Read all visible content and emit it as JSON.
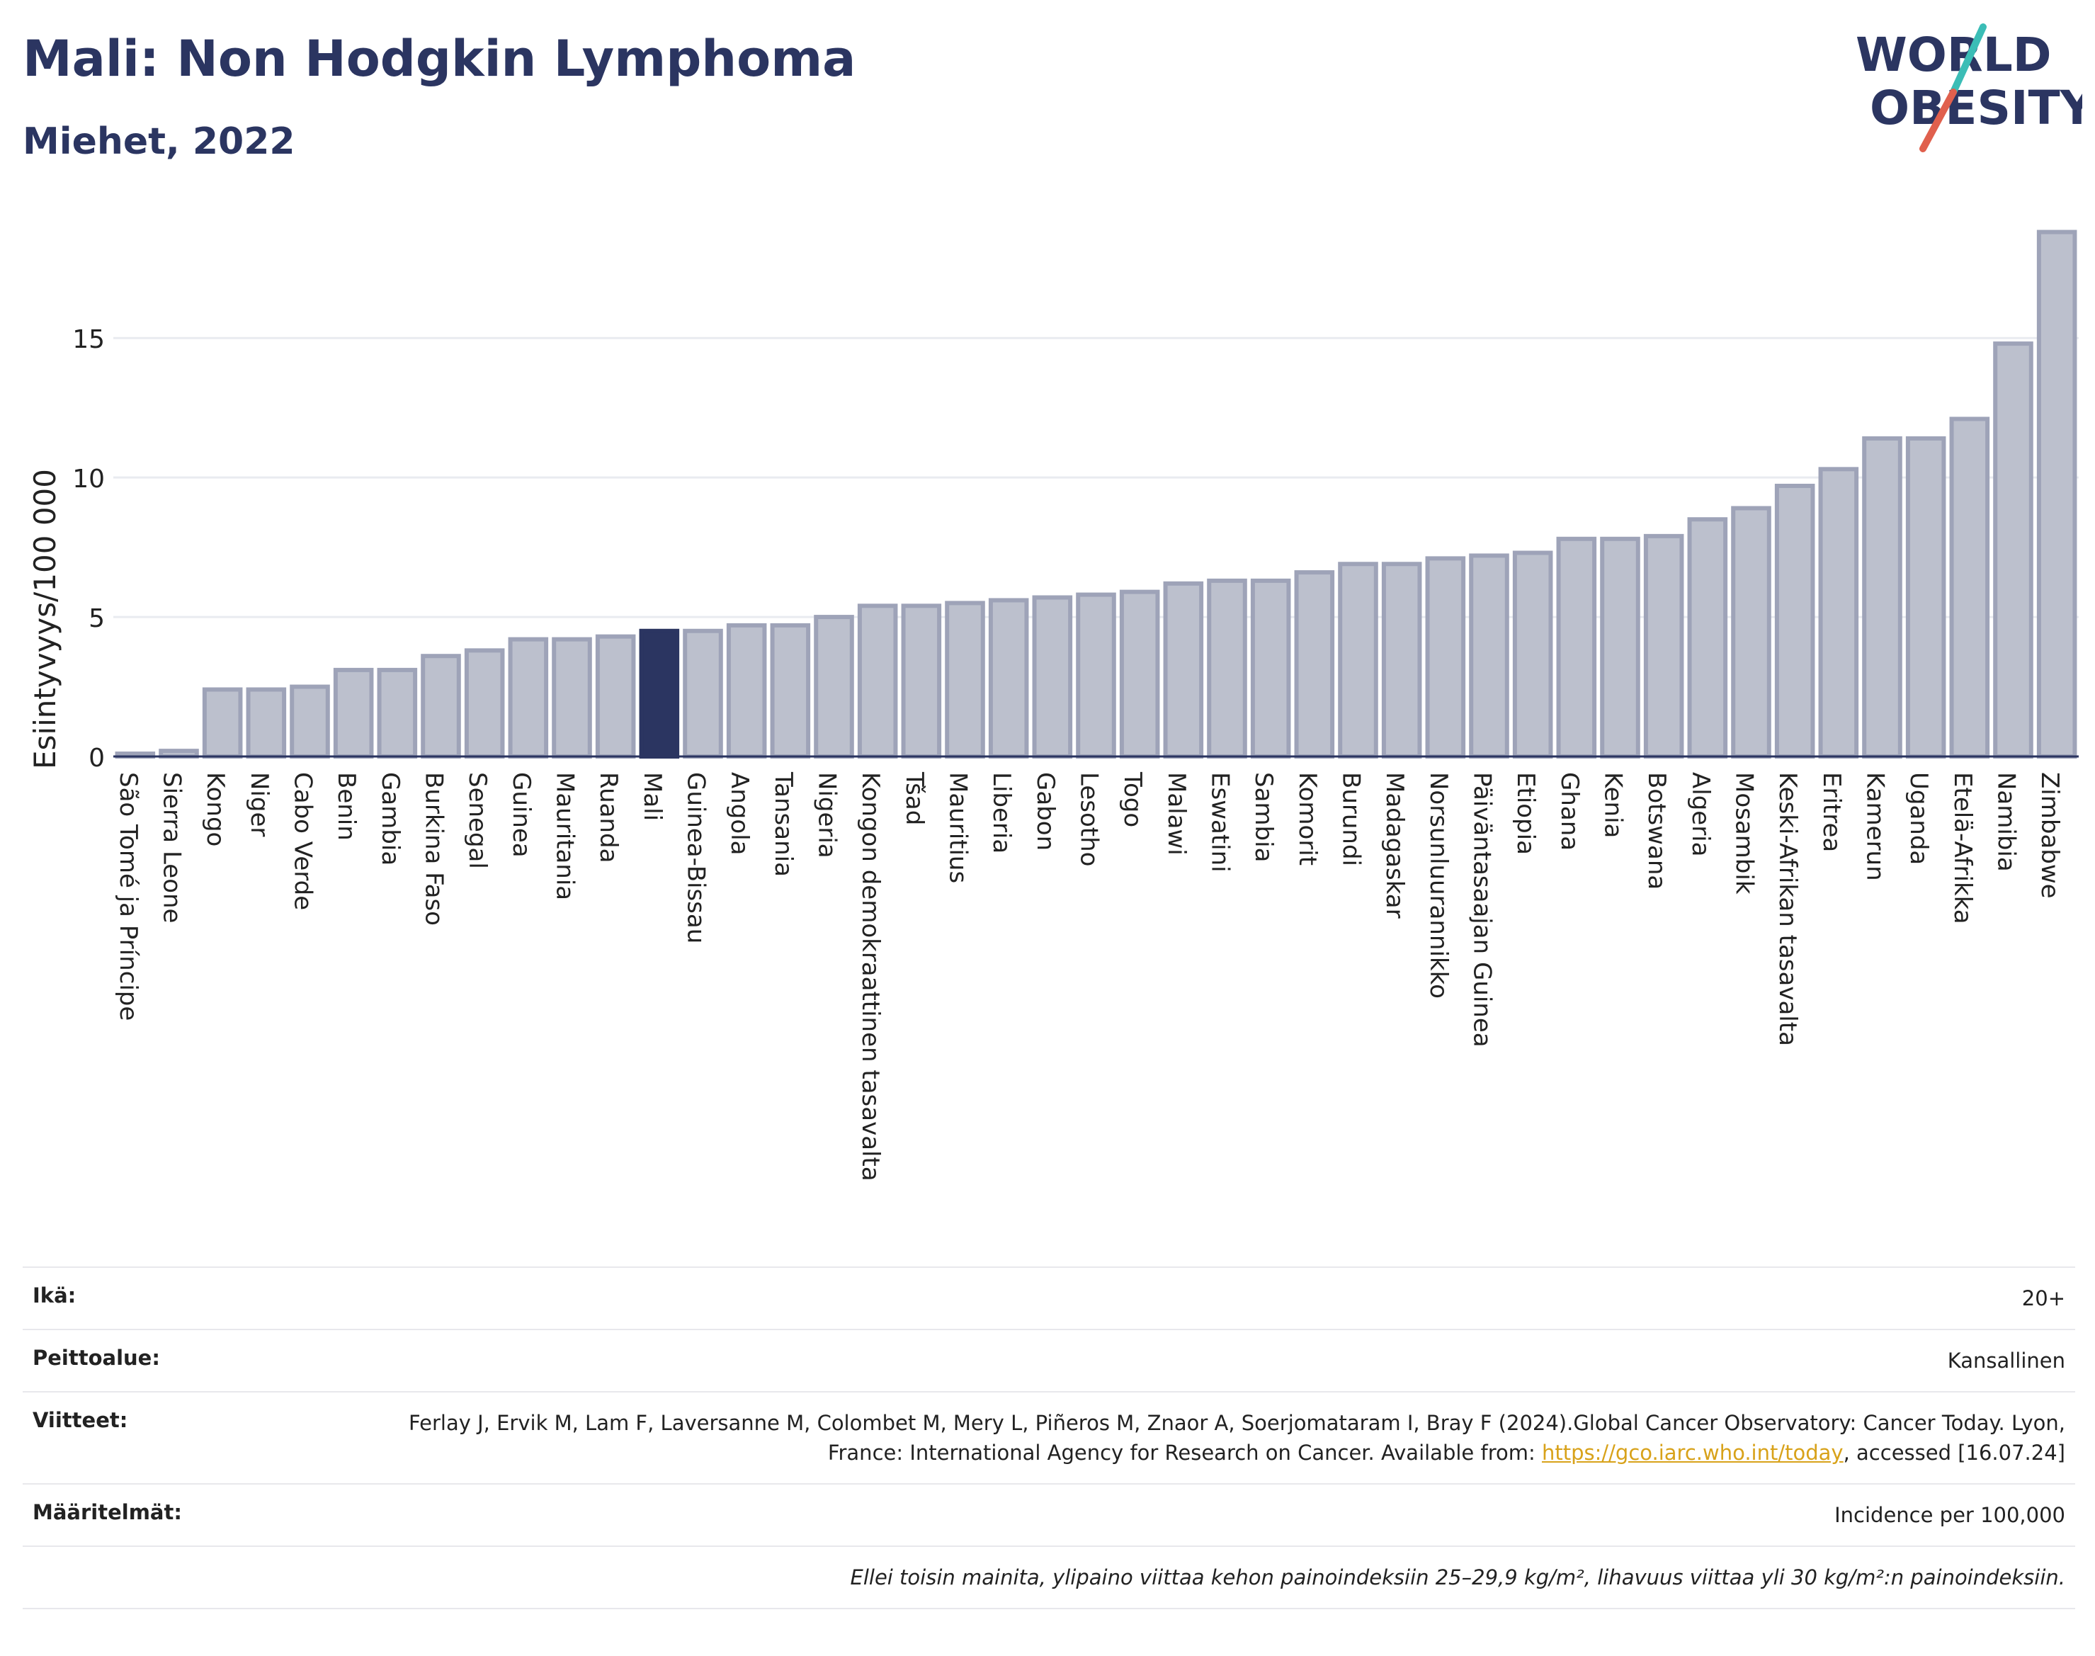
{
  "title": "Mali: Non Hodgkin Lymphoma",
  "subtitle": "Miehet, 2022",
  "logo": {
    "line1": "WORLD",
    "line2": "OBESITY",
    "accent_teal": "#3bbdb6",
    "accent_red": "#e0604d",
    "color": "#2b3561"
  },
  "colors": {
    "highlight": "#2b3561",
    "bar_fill": "#bcc0cd",
    "bar_stroke": "#9ea3b8",
    "grid": "#e9ebf0"
  },
  "chart_data": {
    "type": "bar",
    "title": "Mali: Non Hodgkin Lymphoma",
    "subtitle": "Miehet, 2022",
    "ylabel": "Esiintyvyys/100 000",
    "xlabel": "",
    "ylim": [
      0,
      19.5
    ],
    "yticks": [
      0,
      5,
      10,
      15
    ],
    "grid": true,
    "highlight": "Mali",
    "categories": [
      "São Tomé ja Príncipe",
      "Sierra Leone",
      "Kongo",
      "Niger",
      "Cabo Verde",
      "Benin",
      "Gambia",
      "Burkina Faso",
      "Senegal",
      "Guinea",
      "Mauritania",
      "Ruanda",
      "Mali",
      "Guinea-Bissau",
      "Angola",
      "Tansania",
      "Nigeria",
      "Kongon demokraattinen tasavalta",
      "Tšad",
      "Mauritius",
      "Liberia",
      "Gabon",
      "Lesotho",
      "Togo",
      "Malawi",
      "Eswatini",
      "Sambia",
      "Komorit",
      "Burundi",
      "Madagaskar",
      "Norsunluurannikko",
      "Päiväntasaajan Guinea",
      "Etiopia",
      "Ghana",
      "Kenia",
      "Botswana",
      "Algeria",
      "Mosambik",
      "Keski-Afrikan tasavalta",
      "Eritrea",
      "Kamerun",
      "Uganda",
      "Etelä-Afrikka",
      "Namibia",
      "Zimbabwe"
    ],
    "values": [
      0.1,
      0.2,
      2.4,
      2.4,
      2.5,
      3.1,
      3.1,
      3.6,
      3.8,
      4.2,
      4.2,
      4.3,
      4.5,
      4.5,
      4.7,
      4.7,
      5.0,
      5.4,
      5.4,
      5.5,
      5.6,
      5.7,
      5.8,
      5.9,
      6.2,
      6.3,
      6.3,
      6.6,
      6.9,
      6.9,
      7.1,
      7.2,
      7.3,
      7.8,
      7.8,
      7.9,
      8.5,
      8.9,
      9.7,
      10.3,
      11.4,
      11.4,
      12.1,
      14.8,
      18.8
    ]
  },
  "info": {
    "age_label": "Ikä:",
    "age_value": "20+",
    "coverage_label": "Peittoalue:",
    "coverage_value": "Kansallinen",
    "refs_label": "Viitteet:",
    "refs_text": "Ferlay J, Ervik M, Lam F, Laversanne M, Colombet M, Mery L, Piñeros M, Znaor A, Soerjomataram I, Bray F (2024).Global Cancer Observatory: Cancer Today. Lyon, France: International Agency for Research on Cancer. Available from:",
    "refs_link": "https://gco.iarc.who.int/today",
    "refs_after": ", accessed [16.07.24]",
    "defs_label": "Määritelmät:",
    "defs_value": "Incidence per 100,000",
    "note": "Ellei toisin mainita, ylipaino viittaa kehon painoindeksiin 25–29,9 kg/m², lihavuus viittaa yli 30 kg/m²:n painoindeksiin."
  }
}
